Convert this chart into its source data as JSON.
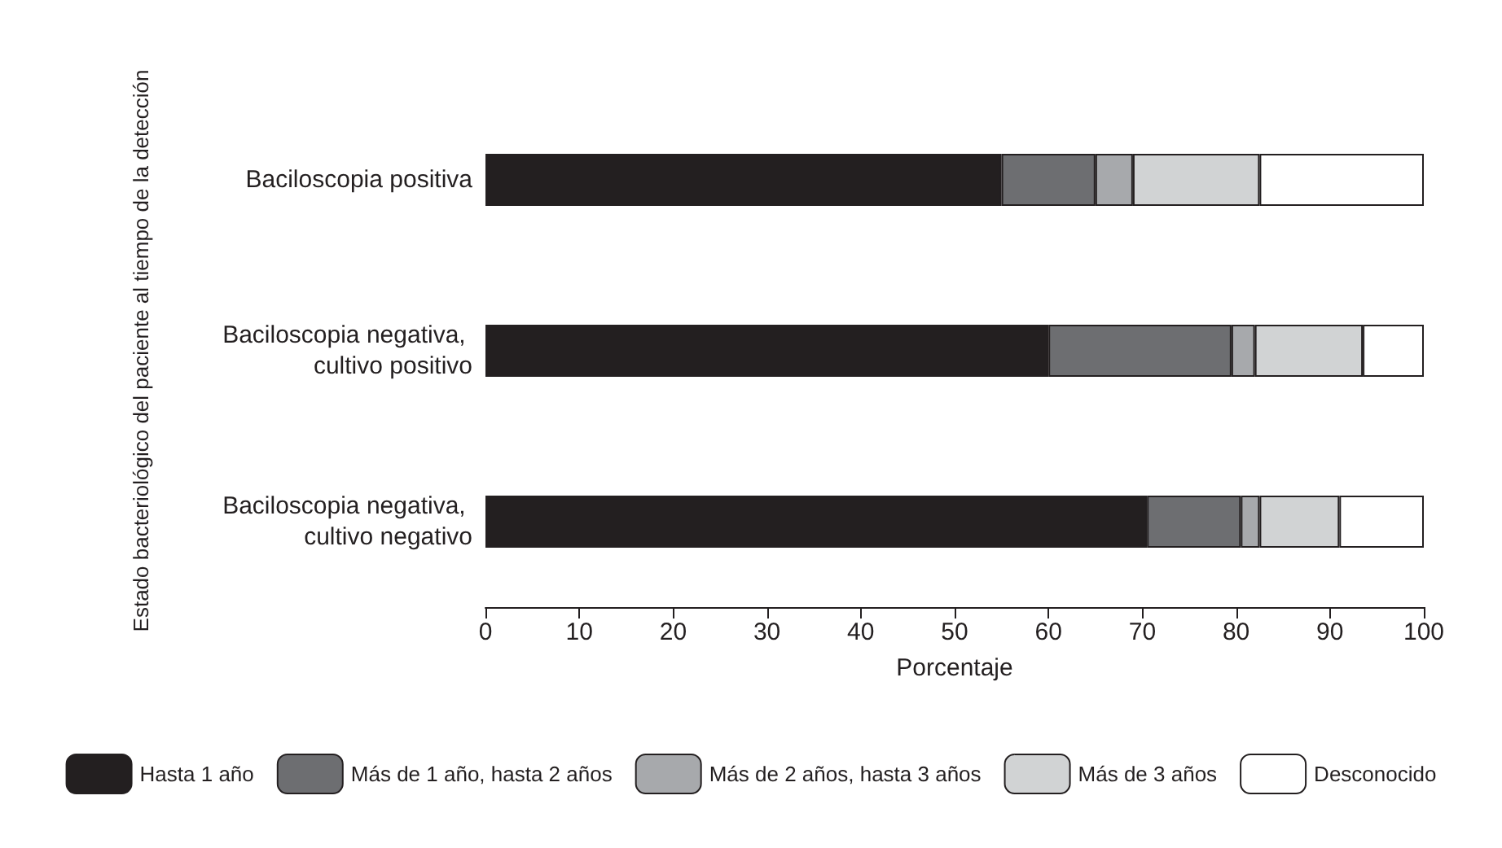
{
  "chart_data": {
    "type": "bar",
    "orientation": "horizontal",
    "stacked": true,
    "xlabel": "Porcentaje",
    "ylabel": "Estado bacteriológico del paciente al tiempo de la detección",
    "categories": [
      "Baciloscopia positiva",
      "Baciloscopia negativa, cultivo positivo",
      "Baciloscopia negativa, cultivo negativo"
    ],
    "series": [
      {
        "name": "Hasta 1 año",
        "color": "#231f20",
        "values": [
          55,
          60,
          70.5
        ]
      },
      {
        "name": "Más de 1 año, hasta 2 años",
        "color": "#6d6e71",
        "values": [
          10,
          19.5,
          10
        ]
      },
      {
        "name": "Más de 2 años, hasta 3 años",
        "color": "#a7a9ac",
        "values": [
          4,
          2.5,
          2
        ]
      },
      {
        "name": "Más de 3 años",
        "color": "#d1d3d4",
        "values": [
          13.5,
          11.5,
          8.5
        ]
      },
      {
        "name": "Desconocido",
        "color": "#ffffff",
        "values": [
          17.5,
          6.5,
          9
        ]
      }
    ],
    "xlim": [
      0,
      100
    ],
    "xticks": [
      0,
      10,
      20,
      30,
      40,
      50,
      60,
      70,
      80,
      90,
      100
    ],
    "grid": false,
    "legend": "bottom"
  }
}
